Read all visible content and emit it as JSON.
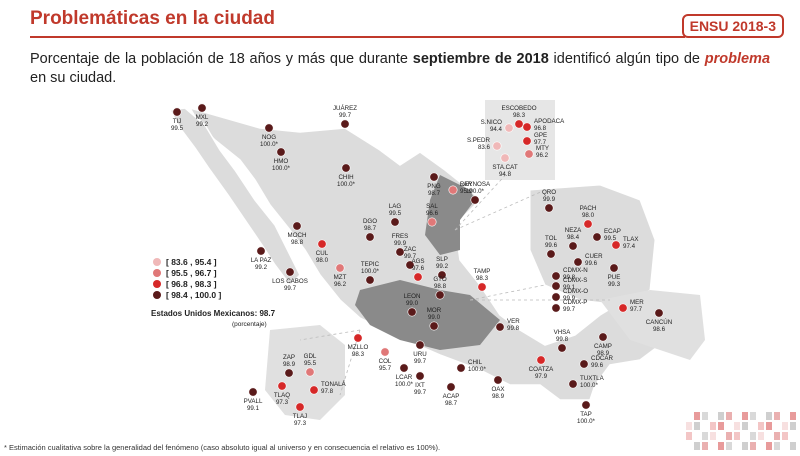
{
  "header": {
    "title": "Problemáticas en la ciudad",
    "badge": "ENSU 2018-3"
  },
  "subtitle": {
    "part1": "Porcentaje de la población de 18 años y más que durante ",
    "bold": "septiembre de 2018",
    "part2": " identificó algún tipo de ",
    "emphasis": "problema",
    "part3": " en su ciudad."
  },
  "legend": {
    "ranges": [
      {
        "label": "[ 83.6 ,  95.4 ]",
        "color": "#f0b8b8"
      },
      {
        "label": "[ 95.5 ,  96.7 ]",
        "color": "#e07878"
      },
      {
        "label": "[ 96.8 ,  98.3 ]",
        "color": "#d62828"
      },
      {
        "label": "[ 98.4 , 100.0 ]",
        "color": "#5a1a1a"
      }
    ],
    "national_label": "Estados Unidos Mexicanos: 98.7",
    "national_note": "(porcentaje)"
  },
  "cities": [
    {
      "name": "TIJ",
      "value": "99.5",
      "cls": 3
    },
    {
      "name": "MXL",
      "value": "99.2",
      "cls": 3
    },
    {
      "name": "NOG",
      "value": "100.0*",
      "cls": 3
    },
    {
      "name": "HMO",
      "value": "100.0*",
      "cls": 3
    },
    {
      "name": "JUÁREZ",
      "value": "99.7",
      "cls": 3
    },
    {
      "name": "CHIH",
      "value": "100.0*",
      "cls": 3
    },
    {
      "name": "ESCOBEDO",
      "value": "98.3",
      "cls": 2
    },
    {
      "name": "S.NICO",
      "value": "94.4",
      "cls": 0
    },
    {
      "name": "APODACA",
      "value": "96.8",
      "cls": 2
    },
    {
      "name": "GPE",
      "value": "97.7",
      "cls": 2
    },
    {
      "name": "S.PEDR",
      "value": "83.6",
      "cls": 0
    },
    {
      "name": "STA.CAT",
      "value": "94.8",
      "cls": 0
    },
    {
      "name": "MTY",
      "value": "96.2",
      "cls": 1
    },
    {
      "name": "PNG",
      "value": "98.7",
      "cls": 3
    },
    {
      "name": "LAR",
      "value": "95.9",
      "cls": 1
    },
    {
      "name": "REYNOSA",
      "value": "100.0*",
      "cls": 3
    },
    {
      "name": "SAL",
      "value": "96.6",
      "cls": 1
    },
    {
      "name": "LAG",
      "value": "99.5",
      "cls": 3
    },
    {
      "name": "MOCH",
      "value": "98.8",
      "cls": 3
    },
    {
      "name": "DGO",
      "value": "98.7",
      "cls": 3
    },
    {
      "name": "CUL",
      "value": "98.0",
      "cls": 2
    },
    {
      "name": "LA PAZ",
      "value": "99.2",
      "cls": 3
    },
    {
      "name": "LOS CABOS",
      "value": "99.7",
      "cls": 3
    },
    {
      "name": "FRES",
      "value": "99.9",
      "cls": 3
    },
    {
      "name": "ZAC",
      "value": "99.7",
      "cls": 3
    },
    {
      "name": "MZT",
      "value": "96.2",
      "cls": 1
    },
    {
      "name": "TEPIC",
      "value": "100.0*",
      "cls": 3
    },
    {
      "name": "AGS",
      "value": "97.6",
      "cls": 2
    },
    {
      "name": "SLP",
      "value": "99.2",
      "cls": 3
    },
    {
      "name": "TAMP",
      "value": "98.3",
      "cls": 2
    },
    {
      "name": "GTO",
      "value": "98.8",
      "cls": 3
    },
    {
      "name": "LEON",
      "value": "99.0",
      "cls": 3
    },
    {
      "name": "MOR",
      "value": "99.0",
      "cls": 3
    },
    {
      "name": "QRO",
      "value": "99.9",
      "cls": 3
    },
    {
      "name": "PACH",
      "value": "98.0",
      "cls": 2
    },
    {
      "name": "NEZA",
      "value": "98.4",
      "cls": 3
    },
    {
      "name": "ECAP",
      "value": "99.5",
      "cls": 3
    },
    {
      "name": "TOL",
      "value": "99.6",
      "cls": 3
    },
    {
      "name": "CUER",
      "value": "99.6",
      "cls": 3
    },
    {
      "name": "TLAX",
      "value": "97.4",
      "cls": 2
    },
    {
      "name": "PUE",
      "value": "99.3",
      "cls": 3
    },
    {
      "name": "CDMX-N",
      "value": "99.8",
      "cls": 3
    },
    {
      "name": "CDMX-S",
      "value": "99.1",
      "cls": 3
    },
    {
      "name": "CDMX-O",
      "value": "99.9",
      "cls": 3
    },
    {
      "name": "CDMX-P",
      "value": "99.7",
      "cls": 3
    },
    {
      "name": "MER",
      "value": "97.7",
      "cls": 2
    },
    {
      "name": "CANCÚN",
      "value": "98.6",
      "cls": 3
    },
    {
      "name": "VER",
      "value": "99.8",
      "cls": 3
    },
    {
      "name": "MZLLO",
      "value": "98.3",
      "cls": 2
    },
    {
      "name": "COL",
      "value": "95.7",
      "cls": 1
    },
    {
      "name": "URU",
      "value": "99.7",
      "cls": 3
    },
    {
      "name": "LCAR",
      "value": "100.0*",
      "cls": 3
    },
    {
      "name": "IXT",
      "value": "99.7",
      "cls": 3
    },
    {
      "name": "CHIL",
      "value": "100.0*",
      "cls": 3
    },
    {
      "name": "VHSA",
      "value": "99.8",
      "cls": 3
    },
    {
      "name": "CAMP",
      "value": "98.9",
      "cls": 3
    },
    {
      "name": "CDCAR",
      "value": "99.6",
      "cls": 3
    },
    {
      "name": "COATZA",
      "value": "97.9",
      "cls": 2
    },
    {
      "name": "OAX",
      "value": "98.9",
      "cls": 3
    },
    {
      "name": "TUXTLA",
      "value": "100.0*",
      "cls": 3
    },
    {
      "name": "ACAP",
      "value": "98.7",
      "cls": 3
    },
    {
      "name": "TAP",
      "value": "100.0*",
      "cls": 3
    },
    {
      "name": "ZAP",
      "value": "98.9",
      "cls": 3
    },
    {
      "name": "GDL",
      "value": "95.5",
      "cls": 1
    },
    {
      "name": "TONALÁ",
      "value": "97.8",
      "cls": 2
    },
    {
      "name": "TLAQ",
      "value": "97.3",
      "cls": 2
    },
    {
      "name": "TLAJ",
      "value": "97.3",
      "cls": 2
    },
    {
      "name": "PVALL",
      "value": "99.1",
      "cls": 3
    }
  ],
  "footnote": "* Estimación cualitativa sobre la generalidad del fenómeno (caso absoluto igual al universo y en consecuencia el relativo es 100%)."
}
